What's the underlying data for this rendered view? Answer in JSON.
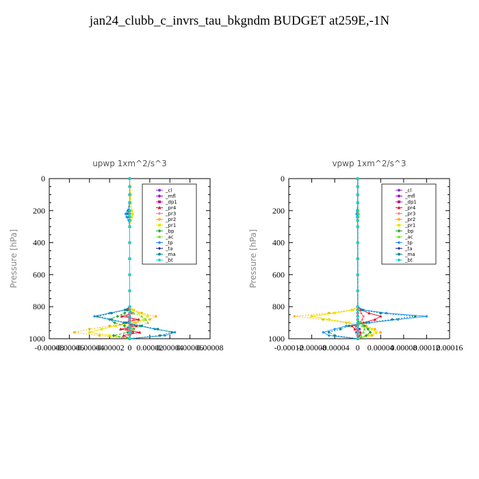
{
  "title": "jan24_clubb_c_invrs_tau_bkgndm  BUDGET at259E,-1N",
  "colors": {
    "_cl": "#8a2be2",
    "_mfl": "#9400d3",
    "_dp1": "#c71585",
    "_pr4": "#e0142e",
    "_pr3": "#ff6060",
    "_pr2": "#ffb000",
    "_pr1": "#e6e600",
    "_bp": "#22aa22",
    "_ac": "#77dd33",
    "_tp": "#1e90ff",
    "_ta": "#000080",
    "_ma": "#008b8b",
    "_bt": "#00d5d5"
  },
  "chart_data": [
    {
      "type": "line",
      "title": "upwp   1xm^2/s^3",
      "ylabel": "Pressure  [hPa]",
      "xlabel": "",
      "xlim": [
        -8e-05,
        8e-05
      ],
      "ylim": [
        1000,
        0
      ],
      "xticks": [
        -8e-05,
        -6e-05,
        -4e-05,
        -2e-05,
        0,
        2e-05,
        4e-05,
        6e-05,
        8e-05
      ],
      "xtick_labels": [
        "-0.00008",
        "-0.00006",
        "-0.00004",
        "-0.00002",
        "0",
        "0.00002",
        "0.00004",
        "0.00006",
        "0.00008"
      ],
      "yticks": [
        0,
        200,
        400,
        600,
        800,
        1000
      ],
      "ytick_labels": [
        "0",
        "200",
        "400",
        "600",
        "800",
        "1000"
      ],
      "legend_position": "top-right",
      "pressure": [
        0,
        50,
        100,
        150,
        200,
        220,
        240,
        260,
        300,
        400,
        500,
        600,
        700,
        800,
        820,
        840,
        860,
        880,
        900,
        920,
        940,
        960,
        980,
        1000
      ],
      "series": [
        {
          "name": "_cl",
          "values": [
            0,
            0,
            0,
            0,
            0,
            0,
            0,
            0,
            0,
            0,
            0,
            0,
            0,
            0,
            0,
            0,
            0,
            0,
            0,
            0,
            0,
            0,
            0,
            0
          ]
        },
        {
          "name": "_mfl",
          "values": [
            0,
            0,
            0,
            0,
            0,
            0,
            0,
            0,
            0,
            0,
            0,
            0,
            0,
            0,
            0,
            0,
            0,
            0,
            0,
            0,
            0,
            0,
            0,
            0
          ]
        },
        {
          "name": "_dp1",
          "values": [
            0,
            0,
            0,
            0,
            0,
            0,
            0,
            0,
            0,
            0,
            0,
            0,
            0,
            0,
            0,
            0,
            0,
            0,
            -2e-06,
            2e-06,
            -3e-06,
            3e-06,
            0,
            0
          ]
        },
        {
          "name": "_pr4",
          "values": [
            0,
            0,
            0,
            0,
            0,
            0,
            0,
            0,
            0,
            0,
            0,
            0,
            0,
            0,
            -2e-06,
            4e-06,
            -8e-06,
            9e-06,
            -6e-06,
            7e-06,
            -9e-06,
            1e-05,
            -6e-06,
            0
          ]
        },
        {
          "name": "_pr3",
          "values": [
            0,
            0,
            0,
            0,
            0,
            0,
            0,
            0,
            0,
            0,
            0,
            0,
            0,
            0,
            0,
            2e-06,
            -3e-06,
            4e-06,
            -2e-06,
            2e-06,
            -3e-06,
            2e-06,
            0,
            0
          ]
        },
        {
          "name": "_pr2",
          "values": [
            0,
            5e-07,
            1e-06,
            1e-06,
            2e-06,
            3e-06,
            2e-06,
            1e-06,
            0,
            0,
            0,
            0,
            0,
            0,
            4e-06,
            1.2e-05,
            2.6e-05,
            2e-05,
            6e-06,
            -2e-05,
            -4e-05,
            -5.5e-05,
            -3e-05,
            0
          ]
        },
        {
          "name": "_pr1",
          "values": [
            0,
            0,
            5e-07,
            1e-06,
            2e-06,
            3e-06,
            2e-06,
            1e-06,
            0,
            0,
            0,
            0,
            0,
            0,
            3e-06,
            9e-06,
            1.8e-05,
            1.4e-05,
            4e-06,
            -1.4e-05,
            -2.8e-05,
            -4e-05,
            -2e-05,
            0
          ]
        },
        {
          "name": "_bp",
          "values": [
            0,
            0,
            0,
            0,
            0,
            0,
            0,
            0,
            0,
            0,
            0,
            0,
            0,
            0,
            0,
            -5e-06,
            -1.2e-05,
            -2e-05,
            -1.5e-05,
            -5e-06,
            4e-06,
            -2e-06,
            -1.6e-05,
            0
          ]
        },
        {
          "name": "_ac",
          "values": [
            0,
            0,
            0,
            0,
            0,
            0,
            0,
            0,
            0,
            0,
            0,
            0,
            0,
            0,
            0,
            4e-06,
            1.2e-05,
            1.6e-05,
            1.8e-05,
            1e-05,
            3e-06,
            0,
            0,
            0
          ]
        },
        {
          "name": "_tp",
          "values": [
            0,
            0,
            0,
            0,
            -2e-06,
            -4e-06,
            -3e-06,
            -1e-06,
            0,
            0,
            0,
            0,
            0,
            0,
            -5e-06,
            -2e-05,
            -3.5e-05,
            -2e-05,
            -5e-06,
            1e-05,
            2.5e-05,
            4.5e-05,
            3.5e-05,
            0
          ]
        },
        {
          "name": "_ta",
          "values": [
            0,
            0,
            0,
            0,
            0,
            0,
            0,
            0,
            0,
            0,
            0,
            0,
            0,
            0,
            0,
            0,
            0,
            0,
            0,
            0,
            0,
            0,
            0,
            0
          ]
        },
        {
          "name": "_ma",
          "values": [
            0,
            0,
            0,
            0,
            -1e-06,
            -2e-06,
            -1e-06,
            0,
            0,
            0,
            0,
            0,
            0,
            0,
            -4e-06,
            -1.8e-05,
            -3.2e-05,
            -1.8e-05,
            -4e-06,
            1.2e-05,
            2.8e-05,
            4.2e-05,
            3e-05,
            0
          ]
        },
        {
          "name": "_bt",
          "values": [
            0,
            0,
            0,
            0,
            0,
            0,
            0,
            0,
            0,
            0,
            0,
            0,
            0,
            0,
            0,
            0,
            0,
            0,
            0,
            0,
            0,
            0,
            0,
            0
          ]
        }
      ]
    },
    {
      "type": "line",
      "title": "vpwp   1xm^2/s^3",
      "ylabel": "Pressure  [hPa]",
      "xlabel": "",
      "xlim": [
        -0.00012,
        0.00016
      ],
      "ylim": [
        1000,
        0
      ],
      "xticks": [
        -0.00012,
        -8e-05,
        -4e-05,
        0,
        4e-05,
        8e-05,
        0.00012,
        0.00016
      ],
      "xtick_labels": [
        "-0.00012",
        "-0.00008",
        "-0.00004",
        "0",
        "0.00004",
        "0.00008",
        "0.00012",
        "0.00016"
      ],
      "yticks": [
        0,
        200,
        400,
        600,
        800,
        1000
      ],
      "ytick_labels": [
        "0",
        "200",
        "400",
        "600",
        "800",
        "1000"
      ],
      "legend_position": "top-right",
      "pressure": [
        0,
        50,
        100,
        150,
        200,
        220,
        240,
        260,
        300,
        400,
        500,
        600,
        700,
        800,
        820,
        840,
        860,
        880,
        900,
        920,
        940,
        960,
        980,
        1000
      ],
      "series": [
        {
          "name": "_cl",
          "values": [
            0,
            0,
            0,
            0,
            0,
            0,
            0,
            0,
            0,
            0,
            0,
            0,
            0,
            0,
            0,
            0,
            0,
            0,
            0,
            0,
            0,
            0,
            0,
            0
          ]
        },
        {
          "name": "_mfl",
          "values": [
            0,
            0,
            0,
            0,
            0,
            0,
            0,
            0,
            0,
            0,
            0,
            0,
            0,
            0,
            0,
            0,
            0,
            0,
            0,
            0,
            0,
            0,
            0,
            0
          ]
        },
        {
          "name": "_dp1",
          "values": [
            0,
            0,
            0,
            0,
            0,
            0,
            0,
            0,
            0,
            0,
            0,
            0,
            0,
            0,
            0,
            0,
            0,
            0,
            2e-06,
            -2e-06,
            3e-06,
            -2e-06,
            0,
            0
          ]
        },
        {
          "name": "_pr4",
          "values": [
            0,
            0,
            0,
            0,
            0,
            0,
            0,
            0,
            0,
            0,
            0,
            0,
            0,
            0,
            6e-06,
            2e-05,
            4e-05,
            3e-05,
            1e-05,
            -1e-05,
            -5e-06,
            5e-06,
            4e-06,
            0
          ]
        },
        {
          "name": "_pr3",
          "values": [
            0,
            0,
            0,
            0,
            0,
            0,
            0,
            0,
            0,
            0,
            0,
            0,
            0,
            0,
            2e-06,
            6e-06,
            1e-05,
            8e-06,
            3e-06,
            -4e-06,
            -2e-06,
            2e-06,
            0,
            0
          ]
        },
        {
          "name": "_pr2",
          "values": [
            0,
            0,
            0,
            0,
            1e-06,
            2e-06,
            1e-06,
            0,
            0,
            0,
            0,
            0,
            0,
            0,
            -1e-05,
            -5e-05,
            -0.00011,
            -6e-05,
            -2e-05,
            1.5e-05,
            3e-05,
            4e-05,
            2.5e-05,
            0
          ]
        },
        {
          "name": "_pr1",
          "values": [
            0,
            0,
            0,
            0,
            1e-06,
            2e-06,
            1e-06,
            0,
            0,
            0,
            0,
            0,
            0,
            0,
            -8e-06,
            -4e-05,
            -8e-05,
            -5e-05,
            -1.5e-05,
            1e-05,
            2.5e-05,
            3.2e-05,
            2e-05,
            0
          ]
        },
        {
          "name": "_bp",
          "values": [
            0,
            0,
            0,
            0,
            0,
            0,
            0,
            0,
            0,
            0,
            0,
            0,
            0,
            0,
            0,
            0,
            0,
            0,
            5e-06,
            1.2e-05,
            1.8e-05,
            2.2e-05,
            1.5e-05,
            0
          ]
        },
        {
          "name": "_ac",
          "values": [
            0,
            0,
            0,
            0,
            0,
            0,
            0,
            0,
            0,
            0,
            0,
            0,
            0,
            0,
            0,
            0,
            0,
            0,
            4e-06,
            8e-06,
            1.2e-05,
            1e-05,
            6e-06,
            0
          ]
        },
        {
          "name": "_tp",
          "values": [
            0,
            0,
            0,
            0,
            -1e-06,
            -2e-06,
            -1e-06,
            0,
            0,
            0,
            0,
            0,
            0,
            0,
            1e-05,
            5e-05,
            0.00012,
            7e-05,
            2e-05,
            -2e-05,
            -4e-05,
            -6e-05,
            -5e-05,
            0
          ]
        },
        {
          "name": "_ta",
          "values": [
            0,
            0,
            0,
            0,
            0,
            0,
            0,
            0,
            0,
            0,
            0,
            0,
            0,
            0,
            0,
            0,
            0,
            0,
            0,
            0,
            0,
            0,
            0,
            0
          ]
        },
        {
          "name": "_ma",
          "values": [
            0,
            0,
            0,
            0,
            0,
            0,
            0,
            0,
            0,
            0,
            0,
            0,
            0,
            0,
            8e-06,
            4e-05,
            0.0001,
            6e-05,
            1.5e-05,
            -1.5e-05,
            -3e-05,
            -5e-05,
            -4e-05,
            0
          ]
        },
        {
          "name": "_bt",
          "values": [
            0,
            0,
            0,
            0,
            0,
            0,
            0,
            0,
            0,
            0,
            0,
            0,
            0,
            0,
            0,
            0,
            0,
            0,
            0,
            0,
            0,
            0,
            0,
            0
          ]
        }
      ]
    }
  ]
}
